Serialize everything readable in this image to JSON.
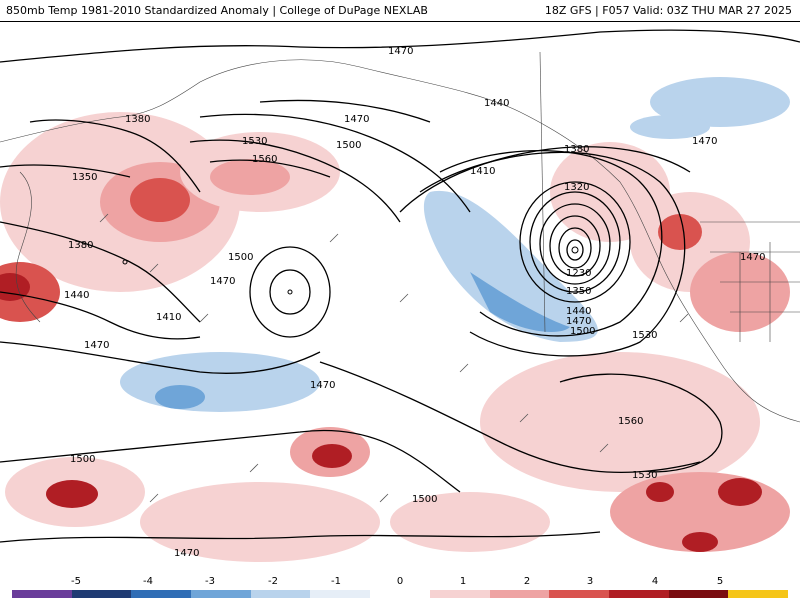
{
  "header": {
    "left_title": "850mb Temp 1981-2010 Standardized Anomaly | College of DuPage NEXLAB",
    "right_title": "18Z GFS | F057 Valid: 03Z THU MAR 27 2025"
  },
  "contour_labels": [
    "1470",
    "1380",
    "1350",
    "1380",
    "1440",
    "1470",
    "1530",
    "1560",
    "1500",
    "1470",
    "1410",
    "1440",
    "1410",
    "1470",
    "1500",
    "1470",
    "1380",
    "1320",
    "1230",
    "1350",
    "1440",
    "1470",
    "1500",
    "1530",
    "1470",
    "1470",
    "1560",
    "1530",
    "1500",
    "1500",
    "1470"
  ],
  "colorbar": {
    "ticks": [
      "-5",
      "-4",
      "-3",
      "-2",
      "-1",
      "0",
      "1",
      "2",
      "3",
      "4",
      "5"
    ],
    "colors": [
      "#6a3d9a",
      "#1f3b73",
      "#2f6db5",
      "#6fa5d8",
      "#b9d3ec",
      "#e6eef7",
      "#ffffff",
      "#f6d2d2",
      "#eea3a3",
      "#d9534f",
      "#b01e24",
      "#7a0c10",
      "#f5c518"
    ]
  }
}
